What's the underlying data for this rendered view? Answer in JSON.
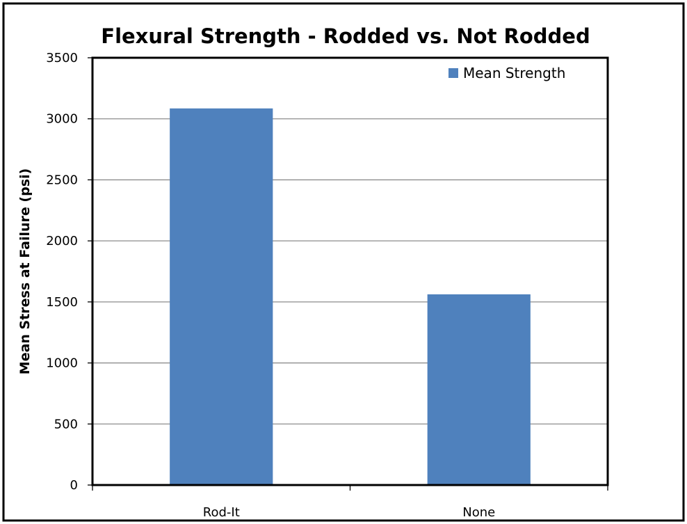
{
  "chart_data": {
    "type": "bar",
    "title": "Flexural Strength - Rodded vs. Not Rodded",
    "xlabel": "",
    "ylabel": "Mean Stress at Failure (psi)",
    "categories": [
      "Rod-It",
      "None"
    ],
    "series": [
      {
        "name": "Mean Strength",
        "values": [
          3085,
          1562
        ],
        "color": "#4f81bd"
      }
    ],
    "ylim": [
      0,
      3500
    ],
    "yticks": [
      0,
      500,
      1000,
      1500,
      2000,
      2500,
      3000,
      3500
    ],
    "grid": true,
    "legend": "top-right"
  }
}
